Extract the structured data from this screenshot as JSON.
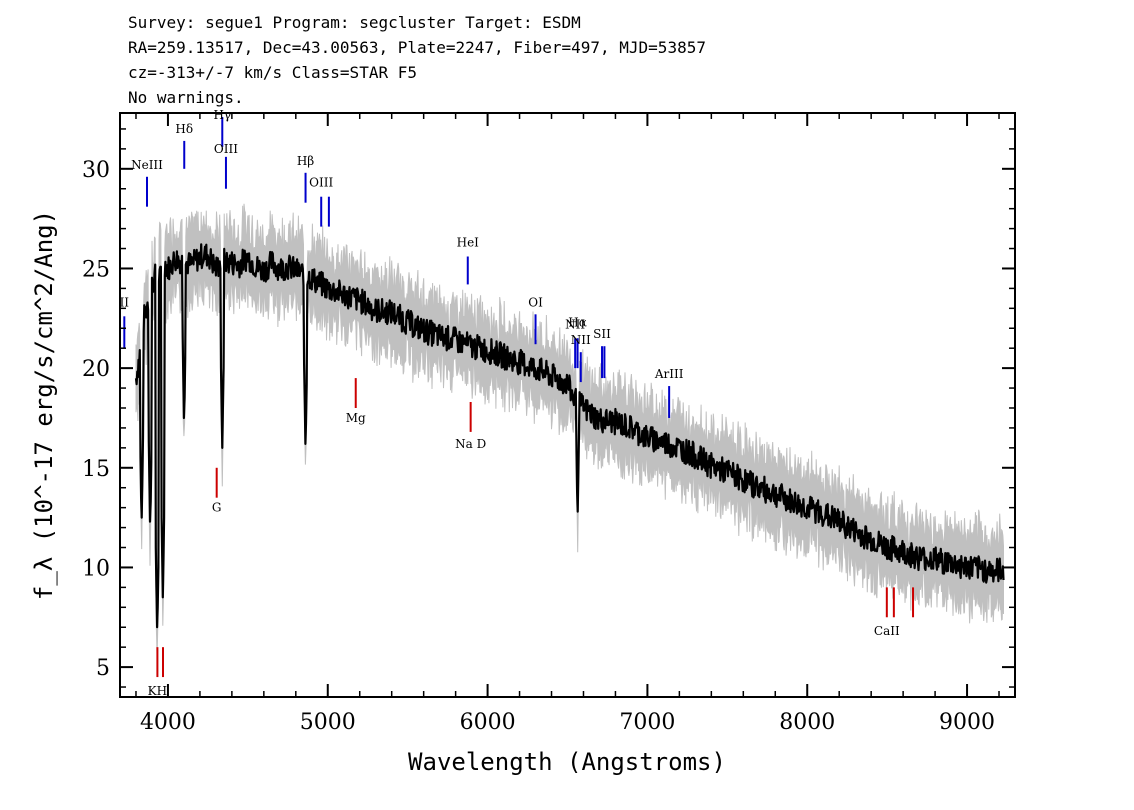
{
  "header": {
    "line1": "Survey: segue1 Program: segcluster Target: ESDM",
    "line2": "RA=259.13517, Dec=43.00563, Plate=2247, Fiber=497, MJD=53857",
    "line3": "cz=-313+/-7 km/s Class=STAR F5",
    "line4": "No warnings."
  },
  "chart_data": {
    "type": "line",
    "xlabel": "Wavelength (Angstroms)",
    "ylabel": "f_λ (10^-17 erg/s/cm^2/Ang)",
    "xlim": [
      3700,
      9300
    ],
    "ylim": [
      3.5,
      32.8
    ],
    "x_ticks": [
      4000,
      5000,
      6000,
      7000,
      8000,
      9000
    ],
    "x_tick_labels": [
      "4000",
      "5000",
      "6000",
      "7000",
      "8000",
      "9000"
    ],
    "y_ticks": [
      5,
      10,
      15,
      20,
      25,
      30
    ],
    "y_tick_labels": [
      "5",
      "10",
      "15",
      "20",
      "25",
      "30"
    ],
    "grid": false,
    "series": [
      {
        "role": "flux",
        "color": "#000000",
        "x": [
          3800,
          3830,
          3850,
          3880,
          3900,
          3920,
          3935,
          3950,
          3968,
          3985,
          4000,
          4050,
          4101,
          4150,
          4200,
          4250,
          4300,
          4340,
          4400,
          4450,
          4500,
          4550,
          4600,
          4650,
          4700,
          4750,
          4800,
          4861,
          4900,
          5000,
          5100,
          5200,
          5300,
          5400,
          5500,
          5600,
          5700,
          5800,
          5900,
          6000,
          6100,
          6200,
          6300,
          6400,
          6500,
          6540,
          6563,
          6600,
          6700,
          6800,
          6900,
          7000,
          7100,
          7200,
          7300,
          7400,
          7500,
          7600,
          7700,
          7800,
          7900,
          8000,
          8100,
          8200,
          8300,
          8400,
          8500,
          8600,
          8700,
          8800,
          8900,
          9000,
          9100,
          9200,
          9230
        ],
        "y": [
          19.5,
          21.0,
          22.5,
          23.5,
          24.2,
          24.6,
          25.0,
          24.4,
          25.5,
          25.2,
          25.0,
          25.5,
          25.3,
          25.2,
          25.6,
          25.7,
          25.0,
          25.4,
          25.3,
          25.2,
          25.6,
          25.1,
          24.9,
          25.3,
          25.0,
          25.1,
          24.9,
          24.7,
          24.5,
          24.0,
          23.7,
          23.4,
          22.9,
          22.8,
          22.3,
          21.9,
          21.6,
          21.4,
          21.1,
          20.9,
          20.6,
          20.3,
          20.0,
          19.6,
          19.2,
          18.5,
          18.3,
          18.0,
          17.4,
          17.3,
          17.0,
          16.5,
          16.3,
          16.0,
          15.6,
          15.1,
          14.8,
          14.4,
          14.0,
          13.7,
          13.3,
          13.0,
          12.7,
          12.3,
          11.8,
          11.4,
          11.0,
          10.8,
          10.5,
          10.4,
          10.2,
          10.0,
          9.9,
          9.8,
          10.0
        ]
      },
      {
        "role": "absorption-dips",
        "color": "#000000",
        "x": [
          3835,
          3889,
          3933,
          3968,
          4101,
          4340,
          4861,
          6563
        ],
        "y": [
          12.0,
          11.8,
          6.5,
          8.5,
          17.0,
          16.0,
          15.7,
          12.3
        ]
      },
      {
        "role": "error",
        "color": "#c0c0c0"
      }
    ],
    "emission_line_markers": [
      {
        "label": "II",
        "x": 3727,
        "y0": 21.0,
        "y1": 22.6,
        "label_y": 23.1,
        "color": "#0000cc"
      },
      {
        "label": "NeIII",
        "x": 3869,
        "y0": 28.1,
        "y1": 29.6,
        "label_y": 30.0,
        "color": "#0000cc"
      },
      {
        "label": "Hδ",
        "x": 4102,
        "y0": 30.0,
        "y1": 31.4,
        "label_y": 31.8,
        "color": "#0000cc"
      },
      {
        "label": "Hγ",
        "x": 4340,
        "y0": 31.1,
        "y1": 32.6,
        "label_y": 32.5,
        "color": "#0000cc"
      },
      {
        "label": "OIII",
        "x": 4363,
        "y0": 29.0,
        "y1": 30.6,
        "label_y": 30.8,
        "color": "#0000cc"
      },
      {
        "label": "Hβ",
        "x": 4861,
        "y0": 28.3,
        "y1": 29.8,
        "label_y": 30.2,
        "color": "#0000cc"
      },
      {
        "label": "OIII",
        "x": 4959,
        "y0": 27.1,
        "y1": 28.6,
        "label_y": 29.1,
        "color": "#0000cc"
      },
      {
        "label": "",
        "x": 5007,
        "y0": 27.1,
        "y1": 28.6,
        "label_y": 29.1,
        "color": "#0000cc"
      },
      {
        "label": "HeI",
        "x": 5876,
        "y0": 24.2,
        "y1": 25.6,
        "label_y": 26.1,
        "color": "#0000cc"
      },
      {
        "label": "OI",
        "x": 6300,
        "y0": 21.2,
        "y1": 22.7,
        "label_y": 23.1,
        "color": "#0000cc"
      },
      {
        "label": "NII",
        "x": 6548,
        "y0": 20.0,
        "y1": 21.5,
        "label_y": 22.0,
        "color": "#0000cc"
      },
      {
        "label": "Hα",
        "x": 6563,
        "y0": 20.0,
        "y1": 21.5,
        "label_y": 22.1,
        "color": "#0000cc"
      },
      {
        "label": "NII",
        "x": 6583,
        "y0": 19.3,
        "y1": 20.8,
        "label_y": 21.2,
        "color": "#0000cc"
      },
      {
        "label": "SII",
        "x": 6716,
        "y0": 19.5,
        "y1": 21.1,
        "label_y": 21.5,
        "color": "#0000cc"
      },
      {
        "label": "",
        "x": 6731,
        "y0": 19.5,
        "y1": 21.1,
        "label_y": 21.5,
        "color": "#0000cc"
      },
      {
        "label": "ArIII",
        "x": 7136,
        "y0": 17.5,
        "y1": 19.1,
        "label_y": 19.5,
        "color": "#0000cc"
      }
    ],
    "absorption_line_markers": [
      {
        "label": "KH",
        "x": 3934,
        "y0": 4.5,
        "y1": 6.0,
        "label_y": 3.6,
        "color": "#cc0000"
      },
      {
        "label": "",
        "x": 3969,
        "y0": 4.5,
        "y1": 6.0,
        "label_y": 3.6,
        "color": "#cc0000"
      },
      {
        "label": "G",
        "x": 4305,
        "y0": 13.5,
        "y1": 15.0,
        "label_y": 12.8,
        "color": "#cc0000"
      },
      {
        "label": "Mg",
        "x": 5175,
        "y0": 18.0,
        "y1": 19.5,
        "label_y": 17.3,
        "color": "#cc0000"
      },
      {
        "label": "Na D",
        "x": 5894,
        "y0": 16.8,
        "y1": 18.3,
        "label_y": 16.0,
        "color": "#cc0000"
      },
      {
        "label": "CaII",
        "x": 8498,
        "y0": 7.5,
        "y1": 9.0,
        "label_y": 6.6,
        "color": "#cc0000"
      },
      {
        "label": "",
        "x": 8542,
        "y0": 7.5,
        "y1": 9.0,
        "label_y": 6.6,
        "color": "#cc0000"
      },
      {
        "label": "",
        "x": 8662,
        "y0": 7.5,
        "y1": 9.0,
        "label_y": 6.6,
        "color": "#cc0000"
      }
    ]
  }
}
